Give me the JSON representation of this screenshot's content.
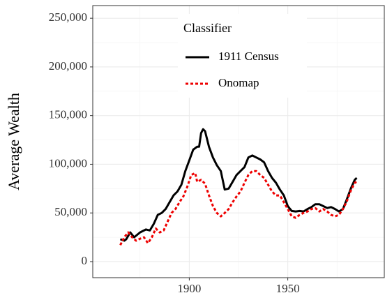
{
  "chart_data": {
    "type": "line",
    "y_label": "Average Wealth",
    "legend_title": "Classifier",
    "legend_position": "top-center",
    "grid": true,
    "xlim": [
      1851,
      1999
    ],
    "ylim": [
      -16500,
      263000
    ],
    "xticks": [
      1900,
      1950
    ],
    "x_minor_ticks": [
      1875,
      1925,
      1975
    ],
    "yticks": [
      0,
      {
        "value": 50000,
        "label": "50,000"
      },
      {
        "value": 100000,
        "label": "100,000"
      },
      {
        "value": 150000,
        "label": "150,000"
      },
      {
        "value": 200000,
        "label": "200,000"
      },
      {
        "value": 250000,
        "label": "250,000"
      }
    ],
    "y_minor_ticks": [
      25000,
      75000,
      125000,
      175000,
      225000
    ],
    "series": [
      {
        "name": "1911 Census",
        "color": "#000000",
        "dash": "solid",
        "x": [
          1865,
          1867,
          1868,
          1870,
          1872,
          1875,
          1878,
          1880,
          1882,
          1884,
          1886,
          1888,
          1890,
          1892,
          1894,
          1896,
          1898,
          1900,
          1902,
          1904,
          1905,
          1906,
          1907,
          1908,
          1910,
          1912,
          1914,
          1916,
          1918,
          1920,
          1922,
          1924,
          1926,
          1928,
          1930,
          1932,
          1934,
          1936,
          1938,
          1940,
          1942,
          1944,
          1946,
          1948,
          1950,
          1952,
          1954,
          1956,
          1958,
          1960,
          1962,
          1964,
          1966,
          1968,
          1970,
          1972,
          1974,
          1976,
          1978,
          1980,
          1982,
          1984,
          1985
        ],
        "values": [
          23000,
          21500,
          23000,
          30000,
          25000,
          30000,
          33000,
          32000,
          39000,
          48000,
          50000,
          54000,
          61000,
          68000,
          72000,
          79000,
          93000,
          104000,
          115000,
          118000,
          118000,
          132000,
          136000,
          134000,
          118000,
          107000,
          99000,
          93000,
          74000,
          75000,
          82000,
          89000,
          93000,
          97000,
          107000,
          109000,
          107000,
          105000,
          102000,
          93000,
          86000,
          81000,
          74000,
          68000,
          57000,
          52000,
          51500,
          52000,
          51500,
          54000,
          56000,
          59000,
          59000,
          57000,
          55000,
          56000,
          54000,
          51500,
          54000,
          64000,
          75000,
          84000,
          86000
        ]
      },
      {
        "name": "Onomap",
        "color": "#ee0000",
        "dash": "dotted",
        "x": [
          1865,
          1867,
          1869,
          1871,
          1873,
          1875,
          1877,
          1879,
          1881,
          1883,
          1885,
          1887,
          1889,
          1891,
          1893,
          1895,
          1897,
          1899,
          1901,
          1903,
          1904,
          1906,
          1908,
          1910,
          1912,
          1914,
          1916,
          1918,
          1920,
          1922,
          1924,
          1926,
          1928,
          1930,
          1932,
          1934,
          1936,
          1938,
          1940,
          1942,
          1944,
          1946,
          1948,
          1950,
          1952,
          1954,
          1956,
          1958,
          1960,
          1962,
          1964,
          1966,
          1968,
          1970,
          1972,
          1974,
          1976,
          1978,
          1980,
          1982,
          1984,
          1985
        ],
        "values": [
          17000,
          25000,
          30000,
          25000,
          21500,
          23500,
          25000,
          19000,
          25000,
          34000,
          30000,
          32000,
          41000,
          50000,
          54000,
          61000,
          67000,
          77000,
          89000,
          91000,
          82000,
          84000,
          80000,
          68000,
          57000,
          50000,
          46500,
          50000,
          54000,
          61000,
          67000,
          72000,
          81000,
          89000,
          93000,
          93000,
          89000,
          86000,
          79000,
          72000,
          68000,
          68000,
          61000,
          54000,
          46500,
          45000,
          48000,
          50000,
          51500,
          54000,
          55000,
          51500,
          54000,
          51500,
          48000,
          46500,
          48000,
          54000,
          62000,
          73000,
          81000,
          82000
        ]
      }
    ]
  }
}
